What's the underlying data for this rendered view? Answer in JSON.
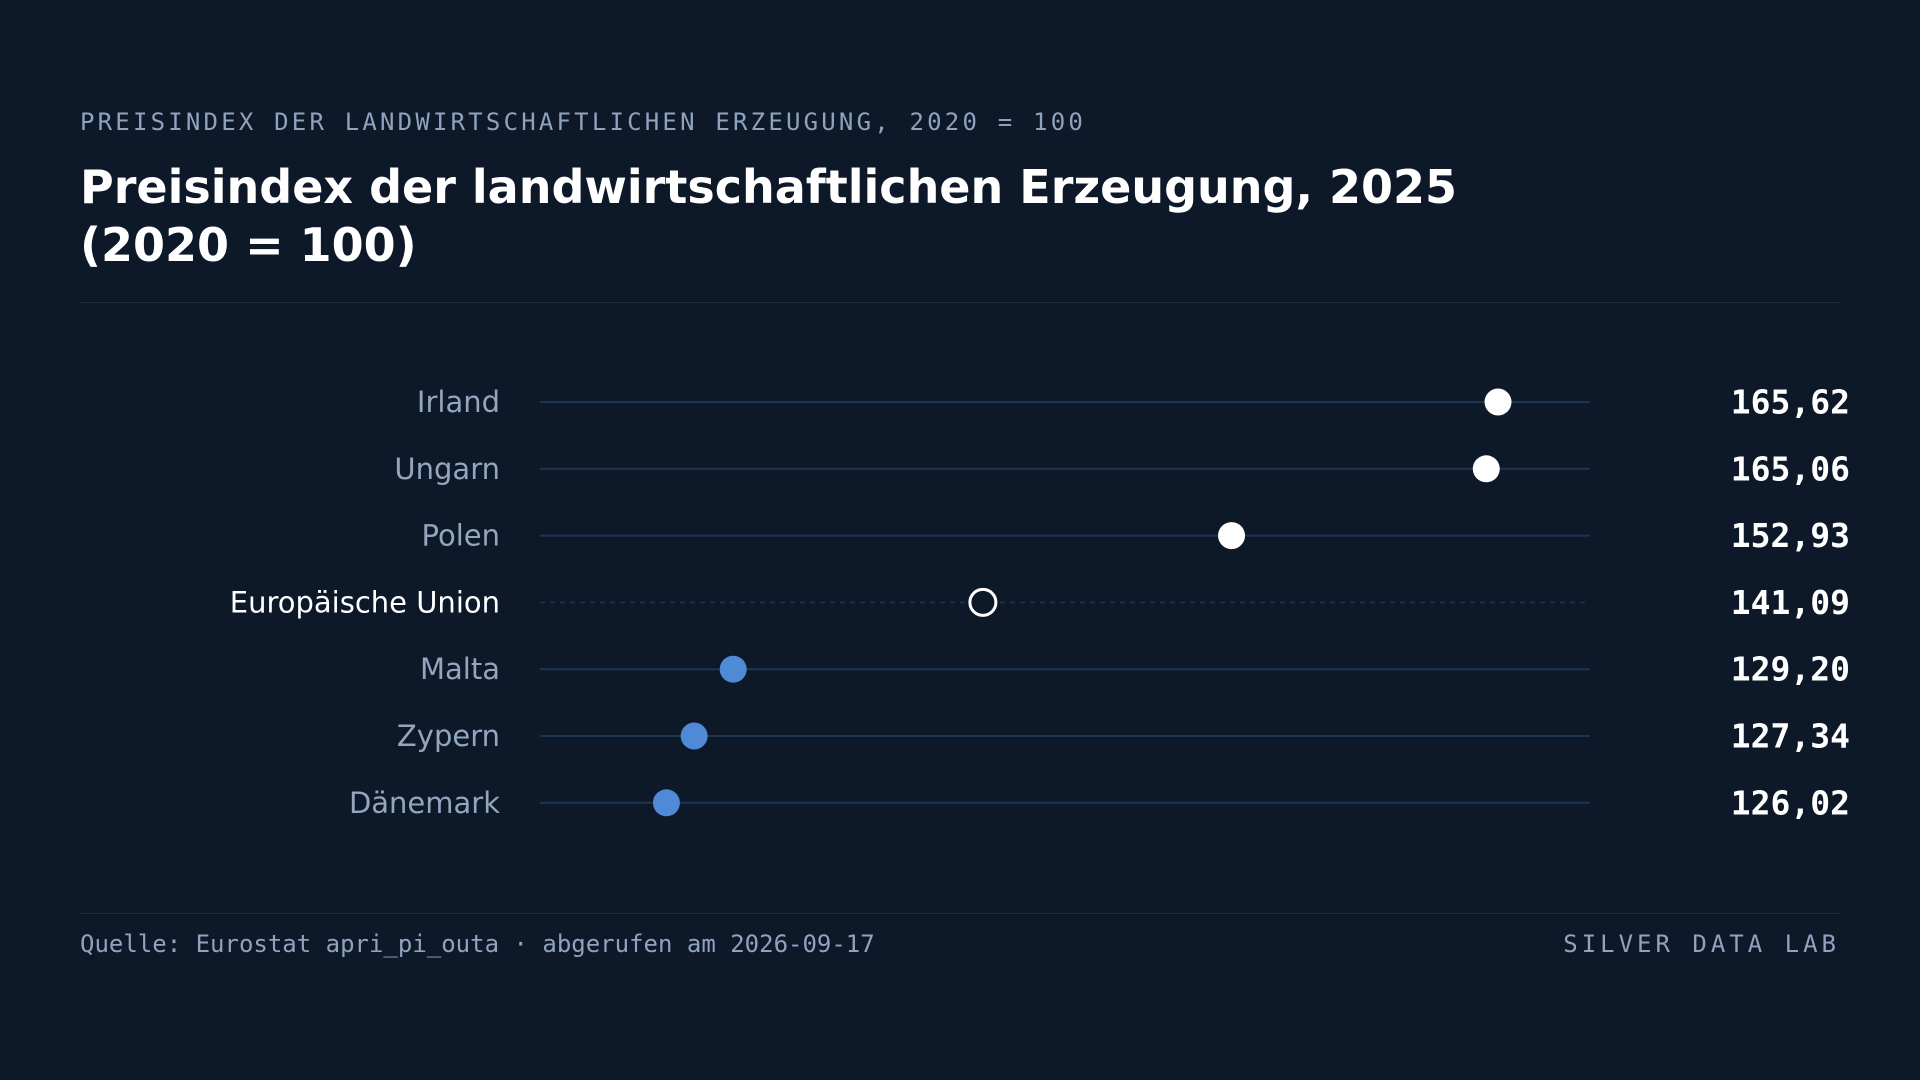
{
  "header": {
    "kicker": "PREISINDEX DER LANDWIRTSCHAFTLICHEN ERZEUGUNG, 2020 = 100",
    "title": "Preisindex der landwirtschaftlichen Erzeugung, 2025 (2020 = 100)"
  },
  "chart_data": {
    "type": "scatter",
    "subtype": "dot-plot",
    "title": "Preisindex der landwirtschaftlichen Erzeugung, 2025 (2020 = 100)",
    "xlabel": "",
    "ylabel": "",
    "xlim": [
      120,
      170
    ],
    "grid": false,
    "legend": "none",
    "categories": [
      "Irland",
      "Ungarn",
      "Polen",
      "Europäische Union",
      "Malta",
      "Zypern",
      "Dänemark"
    ],
    "values": [
      165.62,
      165.06,
      152.93,
      141.09,
      129.2,
      127.34,
      126.02
    ],
    "value_labels": [
      "165,62",
      "165,06",
      "152,93",
      "141,09",
      "129,20",
      "127,34",
      "126,02"
    ],
    "reference_category": "Europäische Union",
    "colors": {
      "above_average": "#ffffff",
      "below_average": "#4f8ad6",
      "reference": "#0d1829",
      "track": "#1e3550",
      "label": "#93a6bf",
      "reference_label": "#ffffff",
      "value": "#ffffff"
    }
  },
  "footer": {
    "source": "Quelle: Eurostat apri_pi_outa · abgerufen am 2026-09-17",
    "brand": "SILVER DATA LAB"
  }
}
